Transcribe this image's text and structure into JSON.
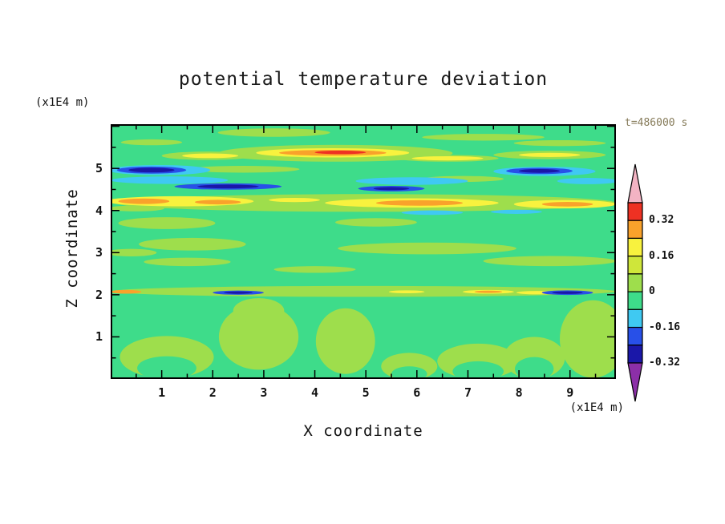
{
  "title": "potential temperature deviation",
  "time_label": "t=486000 s",
  "axes": {
    "x_label": "X coordinate",
    "x_unit": "(x1E4 m)",
    "z_label": "Z coordinate",
    "z_unit": "(x1E4 m)"
  },
  "chart_data": {
    "type": "heatmap",
    "title": "potential temperature deviation",
    "xlabel": "X coordinate (x1E4 m)",
    "ylabel": "Z coordinate (x1E4 m)",
    "time": "t=486000 s",
    "x_range": [
      0,
      9.9
    ],
    "z_range": [
      0,
      6.05
    ],
    "x_ticks": [
      "1",
      "2",
      "3",
      "4",
      "5",
      "6",
      "7",
      "8",
      "9"
    ],
    "z_ticks": [
      "1",
      "2",
      "3",
      "4",
      "5"
    ],
    "grid": false,
    "legend_position": "right",
    "colorbar": {
      "boundaries": [
        0.4,
        0.32,
        0.24,
        0.16,
        0.08,
        0,
        -0.08,
        -0.16,
        -0.24,
        -0.32
      ],
      "colors": [
        "#EE3123",
        "#F9A22B",
        "#F8F23E",
        "#CFE63A",
        "#9EDE4C",
        "#3EDC8A",
        "#3FC9F2",
        "#2850E8",
        "#1A17A8"
      ],
      "above_color": "#F3B3C3",
      "below_color": "#8C2FA8",
      "labels": [
        {
          "text": "0.32",
          "boundary_index": 1
        },
        {
          "text": "0.16",
          "boundary_index": 3
        },
        {
          "text": "0",
          "boundary_index": 5
        },
        {
          "text": "-0.16",
          "boundary_index": 7
        },
        {
          "text": "-0.32",
          "boundary_index": 9
        }
      ]
    },
    "palette": {
      "gr": "#3EDC8A",
      "lg": "#9EDE4C",
      "ch": "#CFE63A",
      "yl": "#F8F23E",
      "or": "#F9A22B",
      "rd": "#EE3123",
      "cy": "#3FC9F2",
      "bl": "#2850E8",
      "nv": "#1A17A8"
    },
    "background_level_color": "gr",
    "features": [
      [
        3.2,
        5.85,
        1.1,
        0.1,
        "lg"
      ],
      [
        7.3,
        5.74,
        1.2,
        0.08,
        "lg"
      ],
      [
        0.8,
        5.62,
        0.6,
        0.07,
        "lg"
      ],
      [
        8.8,
        5.6,
        0.9,
        0.07,
        "lg"
      ],
      [
        4.4,
        5.36,
        2.3,
        0.2,
        "lg"
      ],
      [
        1.9,
        5.3,
        0.9,
        0.1,
        "lg"
      ],
      [
        8.6,
        5.32,
        1.1,
        0.1,
        "lg"
      ],
      [
        6.6,
        5.24,
        1.0,
        0.08,
        "lg"
      ],
      [
        2.6,
        4.98,
        1.1,
        0.08,
        "lg"
      ],
      [
        6.9,
        4.75,
        0.8,
        0.07,
        "lg"
      ],
      [
        5.0,
        4.18,
        4.9,
        0.21,
        "lg"
      ],
      [
        0.5,
        4.05,
        0.55,
        0.07,
        "lg"
      ],
      [
        1.1,
        3.7,
        0.95,
        0.14,
        "lg"
      ],
      [
        5.2,
        3.72,
        0.8,
        0.1,
        "lg"
      ],
      [
        1.6,
        3.2,
        1.05,
        0.15,
        "lg"
      ],
      [
        6.2,
        3.1,
        1.75,
        0.14,
        "lg"
      ],
      [
        0.4,
        3.0,
        0.5,
        0.09,
        "lg"
      ],
      [
        8.6,
        2.8,
        1.3,
        0.12,
        "lg"
      ],
      [
        1.5,
        2.78,
        0.85,
        0.1,
        "lg"
      ],
      [
        4.0,
        2.6,
        0.8,
        0.08,
        "lg"
      ],
      [
        4.95,
        2.08,
        4.95,
        0.13,
        "lg"
      ],
      [
        2.9,
        1.0,
        0.78,
        0.78,
        "lg"
      ],
      [
        2.9,
        1.62,
        0.5,
        0.3,
        "lg"
      ],
      [
        4.6,
        0.9,
        0.58,
        0.78,
        "lg"
      ],
      [
        9.45,
        0.95,
        0.65,
        0.92,
        "lg"
      ],
      [
        1.1,
        0.52,
        0.92,
        0.5,
        "lg"
      ],
      [
        7.2,
        0.42,
        0.8,
        0.42,
        "lg"
      ],
      [
        5.85,
        0.3,
        0.55,
        0.32,
        "lg"
      ],
      [
        8.3,
        0.5,
        0.6,
        0.5,
        "lg"
      ],
      [
        1.1,
        0.26,
        0.58,
        0.28,
        "gr"
      ],
      [
        7.2,
        0.18,
        0.5,
        0.24,
        "gr"
      ],
      [
        8.3,
        0.24,
        0.38,
        0.28,
        "gr"
      ],
      [
        5.85,
        0.12,
        0.35,
        0.18,
        "gr"
      ],
      [
        4.35,
        5.37,
        1.5,
        0.11,
        "yl"
      ],
      [
        4.35,
        5.37,
        1.05,
        0.07,
        "or"
      ],
      [
        4.5,
        5.38,
        0.5,
        0.042,
        "rd"
      ],
      [
        1.95,
        5.3,
        0.55,
        0.055,
        "yl"
      ],
      [
        6.6,
        5.24,
        0.7,
        0.05,
        "yl"
      ],
      [
        8.6,
        5.32,
        0.6,
        0.05,
        "yl"
      ],
      [
        1.35,
        4.22,
        1.45,
        0.12,
        "yl"
      ],
      [
        0.65,
        4.22,
        0.5,
        0.065,
        "or"
      ],
      [
        2.1,
        4.2,
        0.45,
        0.055,
        "or"
      ],
      [
        3.6,
        4.25,
        0.5,
        0.05,
        "yl"
      ],
      [
        5.9,
        4.18,
        1.7,
        0.11,
        "yl"
      ],
      [
        6.05,
        4.18,
        0.85,
        0.065,
        "or"
      ],
      [
        8.9,
        4.15,
        1.0,
        0.1,
        "yl"
      ],
      [
        8.95,
        4.15,
        0.5,
        0.055,
        "or"
      ],
      [
        0.3,
        2.07,
        0.3,
        0.045,
        "or"
      ],
      [
        5.8,
        2.07,
        0.35,
        0.035,
        "yl"
      ],
      [
        7.4,
        2.07,
        0.5,
        0.045,
        "yl"
      ],
      [
        7.4,
        2.07,
        0.27,
        0.028,
        "or"
      ],
      [
        8.35,
        2.05,
        0.4,
        0.04,
        "yl"
      ],
      [
        0.95,
        4.96,
        1.0,
        0.12,
        "cy"
      ],
      [
        0.8,
        4.96,
        0.68,
        0.085,
        "bl"
      ],
      [
        0.8,
        4.96,
        0.45,
        0.055,
        "nv"
      ],
      [
        1.15,
        4.72,
        1.15,
        0.09,
        "cy"
      ],
      [
        2.3,
        4.57,
        1.05,
        0.075,
        "bl"
      ],
      [
        2.3,
        4.57,
        0.6,
        0.045,
        "nv"
      ],
      [
        5.9,
        4.7,
        1.1,
        0.09,
        "cy"
      ],
      [
        5.5,
        4.52,
        0.65,
        0.065,
        "bl"
      ],
      [
        5.5,
        4.52,
        0.35,
        0.038,
        "nv"
      ],
      [
        8.5,
        4.93,
        1.0,
        0.11,
        "cy"
      ],
      [
        8.4,
        4.94,
        0.65,
        0.075,
        "bl"
      ],
      [
        8.4,
        4.94,
        0.4,
        0.045,
        "nv"
      ],
      [
        9.35,
        4.7,
        0.6,
        0.075,
        "cy"
      ],
      [
        6.3,
        3.95,
        0.6,
        0.055,
        "cy"
      ],
      [
        7.95,
        3.97,
        0.5,
        0.05,
        "cy"
      ],
      [
        2.5,
        2.05,
        0.5,
        0.05,
        "bl"
      ],
      [
        2.5,
        2.05,
        0.28,
        0.028,
        "nv"
      ],
      [
        8.95,
        2.05,
        0.5,
        0.055,
        "bl"
      ],
      [
        8.95,
        2.05,
        0.3,
        0.032,
        "nv"
      ]
    ]
  }
}
